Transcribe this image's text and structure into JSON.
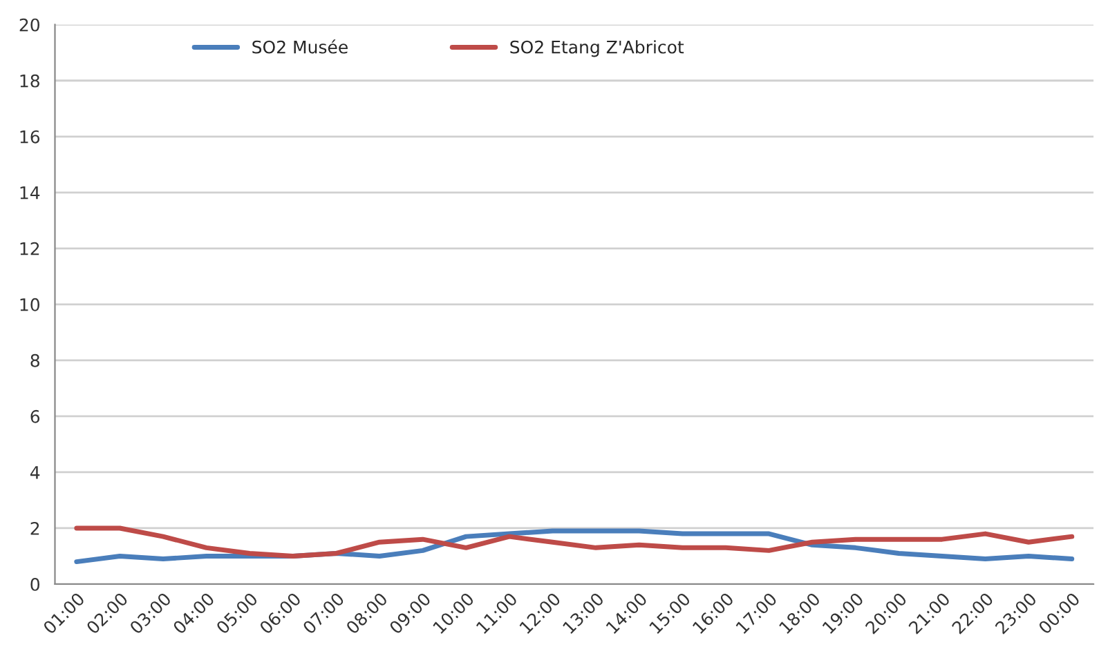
{
  "chart_data": {
    "type": "line",
    "categories": [
      "01:00",
      "02:00",
      "03:00",
      "04:00",
      "05:00",
      "06:00",
      "07:00",
      "08:00",
      "09:00",
      "10:00",
      "11:00",
      "12:00",
      "13:00",
      "14:00",
      "15:00",
      "16:00",
      "17:00",
      "18:00",
      "19:00",
      "20:00",
      "21:00",
      "22:00",
      "23:00",
      "00:00"
    ],
    "series": [
      {
        "name": "SO2 Musée",
        "color": "#4a7ebb",
        "values": [
          0.8,
          1.0,
          0.9,
          1.0,
          1.0,
          1.0,
          1.1,
          1.0,
          1.2,
          1.7,
          1.8,
          1.9,
          1.9,
          1.9,
          1.8,
          1.8,
          1.8,
          1.4,
          1.3,
          1.1,
          1.0,
          0.9,
          1.0,
          0.9
        ]
      },
      {
        "name": "SO2 Etang Z'Abricot",
        "color": "#be4b48",
        "values": [
          2.0,
          2.0,
          1.7,
          1.3,
          1.1,
          1.0,
          1.1,
          1.5,
          1.6,
          1.3,
          1.7,
          1.5,
          1.3,
          1.4,
          1.3,
          1.3,
          1.2,
          1.5,
          1.6,
          1.6,
          1.6,
          1.8,
          1.5,
          1.7
        ]
      }
    ],
    "ylim": [
      0,
      20
    ],
    "yticks": [
      0,
      2,
      4,
      6,
      8,
      10,
      12,
      14,
      16,
      18,
      20
    ],
    "grid": "y",
    "legend": "top",
    "marker": "none",
    "line_style": "solid"
  }
}
